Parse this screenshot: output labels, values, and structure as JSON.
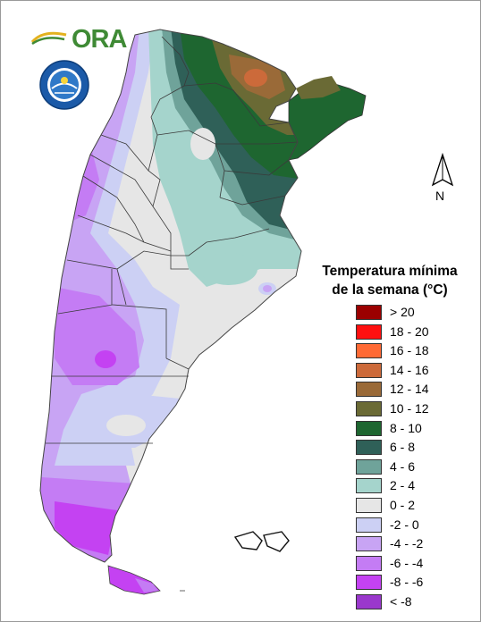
{
  "branding": {
    "logo_text": "ORA",
    "seal_icon": "smn-seal-icon"
  },
  "north_arrow": {
    "label": "N",
    "icon": "north-arrow-icon"
  },
  "legend": {
    "title_line1": "Temperatura mínima",
    "title_line2": "de la semana (°C)",
    "classes": [
      {
        "label": "> 20",
        "color": "#9b0000"
      },
      {
        "label": "18 - 20",
        "color": "#ff1010"
      },
      {
        "label": "16 - 18",
        "color": "#ff6a35"
      },
      {
        "label": "14 - 16",
        "color": "#cc6a3a"
      },
      {
        "label": "12 - 14",
        "color": "#9a6a38"
      },
      {
        "label": "10 - 12",
        "color": "#6a6a35"
      },
      {
        "label": "8 - 10",
        "color": "#1e6630"
      },
      {
        "label": "6 - 8",
        "color": "#2f6058"
      },
      {
        "label": "4 - 6",
        "color": "#6fa39a"
      },
      {
        "label": "2 - 4",
        "color": "#a5d4cc"
      },
      {
        "label": "0 - 2",
        "color": "#e6e6e6"
      },
      {
        "label": "-2 - 0",
        "color": "#ccd0f4"
      },
      {
        "label": "-4 - -2",
        "color": "#c8a4f4"
      },
      {
        "label": "-6 - -4",
        "color": "#c47cf4"
      },
      {
        "label": "-8 - -6",
        "color": "#c442f2"
      },
      {
        "label": "< -8",
        "color": "#9a38cc"
      }
    ]
  }
}
